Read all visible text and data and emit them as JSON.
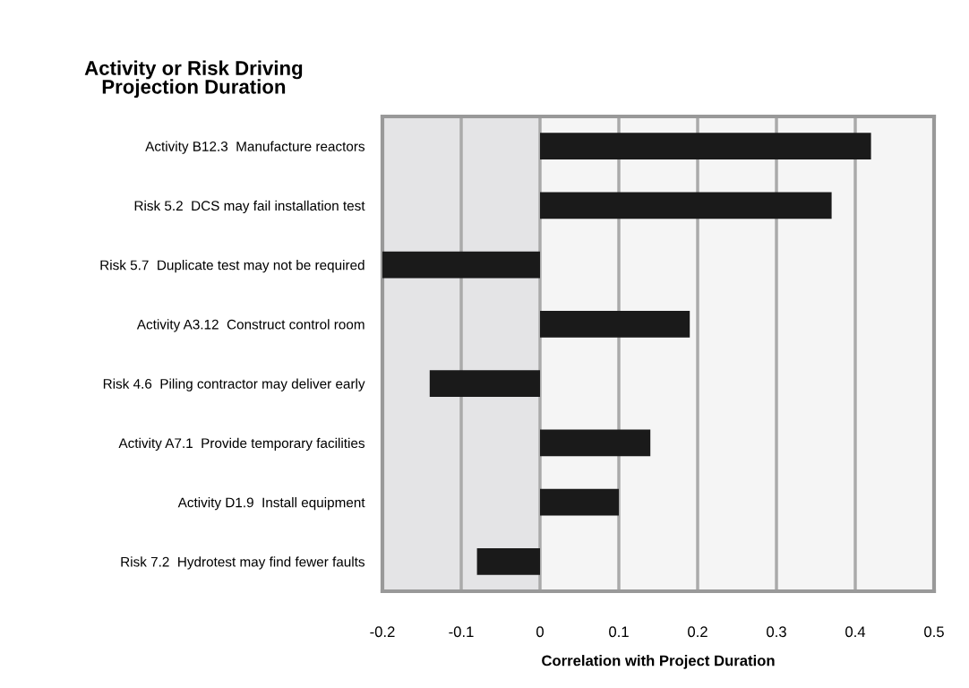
{
  "chart_data": {
    "type": "bar",
    "orientation": "horizontal",
    "title": "Activity or Risk Driving\nProjection Duration",
    "xlabel": "Correlation with Project Duration",
    "categories": [
      "Activity B12.3  Manufacture reactors",
      "Risk 5.2  DCS may fail installation test",
      "Risk 5.7  Duplicate test may not be required",
      "Activity A3.12  Construct control room",
      "Risk 4.6  Piling contractor may deliver early",
      "Activity A7.1  Provide temporary facilities",
      "Activity D1.9  Install equipment",
      "Risk 7.2  Hydrotest may find fewer faults"
    ],
    "values": [
      0.42,
      0.37,
      -0.2,
      0.19,
      -0.14,
      0.14,
      0.1,
      -0.08
    ],
    "color": "#1a1a1a",
    "xlim": [
      -0.2,
      0.5
    ],
    "xticks": [
      -0.2,
      -0.1,
      0,
      0.1,
      0.2,
      0.3,
      0.4,
      0.5
    ],
    "grid": "x",
    "bands": [
      {
        "axis": "x",
        "from": -0.2,
        "to": 0,
        "color": "#e4e4e6"
      },
      {
        "axis": "x",
        "from": 0,
        "to": 0.5,
        "color": "#f5f5f5"
      }
    ]
  }
}
